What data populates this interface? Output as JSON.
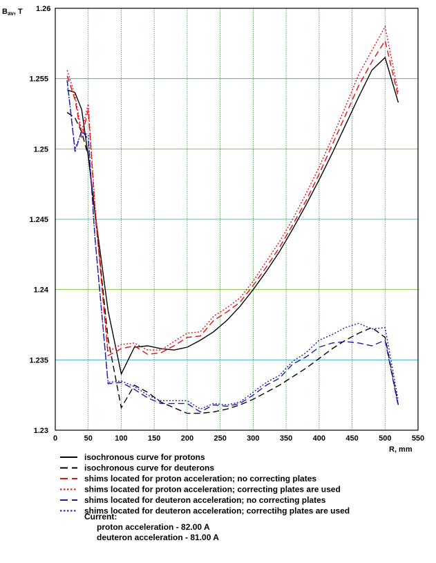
{
  "chart_data": {
    "type": "line",
    "ylabel_main": "B",
    "ylabel_sub": "av",
    "ylabel_unit": ", T",
    "xlabel": "R, mm",
    "xlim": [
      0,
      550
    ],
    "ylim": [
      1.23,
      1.26
    ],
    "x_ticks": [
      0,
      50,
      100,
      150,
      200,
      250,
      300,
      350,
      400,
      450,
      500,
      550
    ],
    "y_ticks": [
      {
        "value": 1.23,
        "label": "1.23"
      },
      {
        "value": 1.235,
        "label": "1.235"
      },
      {
        "value": 1.24,
        "label": "1.24"
      },
      {
        "value": 1.245,
        "label": "1.245"
      },
      {
        "value": 1.25,
        "label": "1.25"
      },
      {
        "value": 1.255,
        "label": "1.255"
      },
      {
        "value": 1.26,
        "label": "1.26"
      }
    ],
    "grid": true,
    "series": [
      {
        "name": "isochronous curve for protons",
        "color": "#000000",
        "dash": "solid",
        "points": [
          [
            18,
            1.2542
          ],
          [
            30,
            1.254
          ],
          [
            40,
            1.2528
          ],
          [
            50,
            1.2495
          ],
          [
            60,
            1.2455
          ],
          [
            80,
            1.2385
          ],
          [
            100,
            1.234
          ],
          [
            120,
            1.2359
          ],
          [
            140,
            1.236
          ],
          [
            160,
            1.2358
          ],
          [
            180,
            1.2357
          ],
          [
            200,
            1.2359
          ],
          [
            220,
            1.2364
          ],
          [
            240,
            1.237
          ],
          [
            260,
            1.2378
          ],
          [
            280,
            1.2388
          ],
          [
            300,
            1.24
          ],
          [
            320,
            1.2413
          ],
          [
            340,
            1.2427
          ],
          [
            360,
            1.2443
          ],
          [
            380,
            1.246
          ],
          [
            400,
            1.2478
          ],
          [
            420,
            1.2497
          ],
          [
            440,
            1.2517
          ],
          [
            460,
            1.2537
          ],
          [
            480,
            1.2556
          ],
          [
            500,
            1.2565
          ],
          [
            520,
            1.2533
          ]
        ]
      },
      {
        "name": "isochronous curve for deuterons",
        "color": "#000000",
        "dash": "long",
        "points": [
          [
            18,
            1.2526
          ],
          [
            30,
            1.2522
          ],
          [
            40,
            1.2512
          ],
          [
            50,
            1.2495
          ],
          [
            60,
            1.2455
          ],
          [
            80,
            1.2365
          ],
          [
            100,
            1.2316
          ],
          [
            120,
            1.2332
          ],
          [
            140,
            1.2327
          ],
          [
            160,
            1.232
          ],
          [
            180,
            1.2316
          ],
          [
            200,
            1.2312
          ],
          [
            220,
            1.2312
          ],
          [
            240,
            1.2313
          ],
          [
            260,
            1.2315
          ],
          [
            280,
            1.2318
          ],
          [
            300,
            1.2322
          ],
          [
            320,
            1.2327
          ],
          [
            340,
            1.2332
          ],
          [
            360,
            1.2338
          ],
          [
            380,
            1.2344
          ],
          [
            400,
            1.2351
          ],
          [
            420,
            1.2358
          ],
          [
            440,
            1.2364
          ],
          [
            460,
            1.2369
          ],
          [
            480,
            1.2373
          ],
          [
            500,
            1.2366
          ],
          [
            520,
            1.2318
          ]
        ]
      },
      {
        "name": "shims located for proton acceleration; no correcting plates",
        "color": "#e01010",
        "dash": "long",
        "points": [
          [
            18,
            1.2552
          ],
          [
            30,
            1.2535
          ],
          [
            40,
            1.2508
          ],
          [
            50,
            1.2528
          ],
          [
            60,
            1.2458
          ],
          [
            80,
            1.2353
          ],
          [
            100,
            1.2358
          ],
          [
            120,
            1.236
          ],
          [
            140,
            1.2354
          ],
          [
            160,
            1.2355
          ],
          [
            180,
            1.236
          ],
          [
            200,
            1.2366
          ],
          [
            220,
            1.2367
          ],
          [
            240,
            1.2378
          ],
          [
            260,
            1.2384
          ],
          [
            280,
            1.2391
          ],
          [
            300,
            1.2403
          ],
          [
            320,
            1.2416
          ],
          [
            340,
            1.243
          ],
          [
            360,
            1.2446
          ],
          [
            380,
            1.2463
          ],
          [
            400,
            1.2482
          ],
          [
            420,
            1.2503
          ],
          [
            440,
            1.2524
          ],
          [
            460,
            1.2545
          ],
          [
            480,
            1.2562
          ],
          [
            500,
            1.2577
          ],
          [
            520,
            1.2537
          ]
        ]
      },
      {
        "name": "shims located for proton acceleration; correcting plates are used",
        "color": "#e01010",
        "dash": "dotted",
        "points": [
          [
            18,
            1.2556
          ],
          [
            30,
            1.2538
          ],
          [
            40,
            1.2512
          ],
          [
            50,
            1.2532
          ],
          [
            60,
            1.2461
          ],
          [
            80,
            1.2356
          ],
          [
            100,
            1.2361
          ],
          [
            120,
            1.2362
          ],
          [
            140,
            1.2357
          ],
          [
            160,
            1.2357
          ],
          [
            180,
            1.2363
          ],
          [
            200,
            1.2369
          ],
          [
            220,
            1.237
          ],
          [
            240,
            1.2381
          ],
          [
            260,
            1.2387
          ],
          [
            280,
            1.2394
          ],
          [
            300,
            1.2406
          ],
          [
            320,
            1.242
          ],
          [
            340,
            1.2434
          ],
          [
            360,
            1.245
          ],
          [
            380,
            1.2468
          ],
          [
            400,
            1.2487
          ],
          [
            420,
            1.2508
          ],
          [
            440,
            1.253
          ],
          [
            460,
            1.2553
          ],
          [
            480,
            1.257
          ],
          [
            500,
            1.2587
          ],
          [
            520,
            1.254
          ]
        ]
      },
      {
        "name": "shims located for deuteron acceleration; no correcting plates",
        "color": "#1a1ab0",
        "dash": "long",
        "points": [
          [
            18,
            1.2549
          ],
          [
            30,
            1.2498
          ],
          [
            40,
            1.2513
          ],
          [
            50,
            1.2507
          ],
          [
            60,
            1.2438
          ],
          [
            80,
            1.2333
          ],
          [
            100,
            1.2334
          ],
          [
            120,
            1.2329
          ],
          [
            140,
            1.2323
          ],
          [
            160,
            1.2319
          ],
          [
            180,
            1.2319
          ],
          [
            200,
            1.2319
          ],
          [
            220,
            1.2313
          ],
          [
            240,
            1.2318
          ],
          [
            260,
            1.2317
          ],
          [
            280,
            1.2319
          ],
          [
            300,
            1.2325
          ],
          [
            320,
            1.2332
          ],
          [
            340,
            1.2337
          ],
          [
            360,
            1.2347
          ],
          [
            380,
            1.2352
          ],
          [
            400,
            1.2359
          ],
          [
            420,
            1.2362
          ],
          [
            440,
            1.2363
          ],
          [
            460,
            1.2362
          ],
          [
            480,
            1.236
          ],
          [
            500,
            1.2364
          ],
          [
            520,
            1.2317
          ]
        ]
      },
      {
        "name": "shims located for deuteron acceleration; correctihg plates are used",
        "color": "#1a1ab0",
        "dash": "dotted",
        "points": [
          [
            18,
            1.2548
          ],
          [
            30,
            1.25
          ],
          [
            40,
            1.2512
          ],
          [
            50,
            1.251
          ],
          [
            60,
            1.2437
          ],
          [
            80,
            1.2334
          ],
          [
            100,
            1.2335
          ],
          [
            120,
            1.2331
          ],
          [
            140,
            1.2325
          ],
          [
            160,
            1.2321
          ],
          [
            180,
            1.2321
          ],
          [
            200,
            1.2321
          ],
          [
            220,
            1.2315
          ],
          [
            240,
            1.2319
          ],
          [
            260,
            1.2318
          ],
          [
            280,
            1.232
          ],
          [
            300,
            1.2327
          ],
          [
            320,
            1.2334
          ],
          [
            340,
            1.2339
          ],
          [
            360,
            1.2349
          ],
          [
            380,
            1.2355
          ],
          [
            400,
            1.2364
          ],
          [
            420,
            1.2368
          ],
          [
            440,
            1.2373
          ],
          [
            460,
            1.2376
          ],
          [
            480,
            1.2372
          ],
          [
            500,
            1.2373
          ],
          [
            520,
            1.2321
          ]
        ]
      }
    ]
  },
  "notes": {
    "current_title": "Current:",
    "proton_line": "proton acceleration - 82.00 A",
    "deuteron_line": "deuteron acceleration - 81.00 A"
  }
}
